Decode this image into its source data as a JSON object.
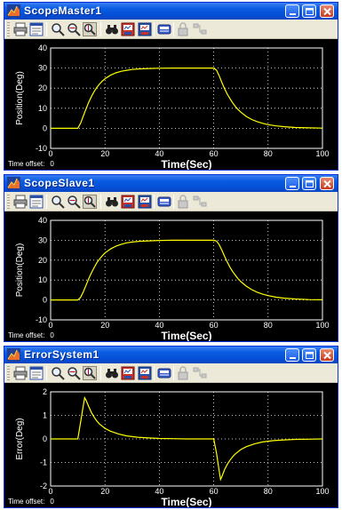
{
  "colors": {
    "titlebar": "#0a5ce0",
    "plot_background": "#000000",
    "trace": "#ffff00",
    "axes_text": "#ffffff",
    "grid": "#ffffff"
  },
  "toolbar_icons": [
    "print-icon",
    "parameters-icon",
    "zoom-icon",
    "zoom-x-icon",
    "zoom-y-icon",
    "autoscale-icon",
    "save-axes-icon",
    "restore-axes-icon",
    "floating-scope-icon",
    "lock-axes-icon",
    "signal-selection-icon"
  ],
  "windows": [
    {
      "title": "ScopeMaster1",
      "time_offset_label": "Time offset:",
      "time_offset_value": "0",
      "chart_data": {
        "type": "line",
        "xlabel": "Time(Sec)",
        "ylabel": "Position(Deg)",
        "xlim": [
          0,
          100
        ],
        "ylim": [
          -10,
          40
        ],
        "xticks": [
          0,
          20,
          40,
          60,
          80,
          100
        ],
        "yticks": [
          -10,
          0,
          10,
          20,
          30,
          40
        ],
        "grid": true,
        "series": [
          {
            "x": [
              0,
              10,
              11,
              12,
              13,
              14,
              15,
              16,
              17,
              18,
              19,
              20,
              22,
              24,
              26,
              28,
              30,
              33,
              36,
              40,
              45,
              50,
              55,
              60,
              61,
              62,
              63,
              64,
              65,
              66,
              67,
              68,
              69,
              70,
              72,
              74,
              76,
              78,
              80,
              83,
              86,
              90,
              95,
              100
            ],
            "y": [
              0,
              0,
              2.5,
              6.0,
              9.6,
              12.9,
              15.8,
              18.3,
              20.4,
              22.1,
              23.5,
              24.7,
              26.4,
              27.6,
              28.4,
              28.9,
              29.3,
              29.6,
              29.8,
              29.9,
              30,
              30,
              30,
              30,
              29.0,
              26.2,
              22.8,
              19.7,
              17.0,
              14.7,
              12.6,
              10.8,
              9.3,
              8.0,
              5.9,
              4.4,
              3.3,
              2.5,
              1.8,
              1.2,
              0.8,
              0.4,
              0.2,
              0.1
            ]
          }
        ]
      }
    },
    {
      "title": "ScopeSlave1",
      "time_offset_label": "Time offset:",
      "time_offset_value": "0",
      "chart_data": {
        "type": "line",
        "xlabel": "Time(Sec)",
        "ylabel": "Position(Deg)",
        "xlim": [
          0,
          100
        ],
        "ylim": [
          -10,
          40
        ],
        "xticks": [
          0,
          20,
          40,
          60,
          80,
          100
        ],
        "yticks": [
          -10,
          0,
          10,
          20,
          30,
          40
        ],
        "grid": true,
        "series": [
          {
            "x": [
              0,
              10,
              11,
              12,
              13,
              14,
              15,
              16,
              17,
              18,
              19,
              20,
              22,
              24,
              26,
              28,
              30,
              33,
              36,
              40,
              45,
              50,
              55,
              60,
              61,
              62,
              63,
              64,
              65,
              66,
              67,
              68,
              69,
              70,
              72,
              74,
              76,
              78,
              80,
              83,
              86,
              90,
              95,
              100
            ],
            "y": [
              0,
              0,
              1.3,
              4.0,
              7.3,
              10.6,
              13.6,
              16.3,
              18.7,
              20.6,
              22.2,
              23.6,
              25.6,
              27.0,
              28.0,
              28.7,
              29.1,
              29.5,
              29.7,
              29.9,
              30,
              30,
              30,
              30,
              29.6,
              27.8,
              25.0,
              21.9,
              19.0,
              16.4,
              14.2,
              12.3,
              10.6,
              9.2,
              6.9,
              5.2,
              3.9,
              2.9,
              2.2,
              1.4,
              0.9,
              0.5,
              0.2,
              0.1
            ]
          }
        ]
      }
    },
    {
      "title": "ErrorSystem1",
      "time_offset_label": "Time offset:",
      "time_offset_value": "0",
      "chart_data": {
        "type": "line",
        "xlabel": "Time(Sec)",
        "ylabel": "Error(Deg)",
        "xlim": [
          0,
          100
        ],
        "ylim": [
          -2,
          2
        ],
        "xticks": [
          0,
          20,
          40,
          60,
          80,
          100
        ],
        "yticks": [
          -2,
          -1,
          0,
          1,
          2
        ],
        "grid": true,
        "series": [
          {
            "x": [
              0,
              10,
              11,
              12,
              12.5,
              13,
              14,
              15,
              16,
              17,
              18,
              20,
              22,
              25,
              28,
              32,
              36,
              40,
              45,
              50,
              55,
              60,
              61,
              62,
              62.5,
              63,
              64,
              65,
              66,
              67,
              68,
              70,
              72,
              75,
              78,
              82,
              86,
              90,
              95,
              100
            ],
            "y": [
              0,
              0,
              0.7,
              1.4,
              1.75,
              1.65,
              1.38,
              1.12,
              0.92,
              0.76,
              0.63,
              0.45,
              0.33,
              0.21,
              0.13,
              0.07,
              0.04,
              0.02,
              0.01,
              0,
              0,
              0,
              -0.6,
              -1.35,
              -1.72,
              -1.6,
              -1.3,
              -1.08,
              -0.9,
              -0.75,
              -0.63,
              -0.45,
              -0.33,
              -0.21,
              -0.13,
              -0.07,
              -0.04,
              -0.02,
              -0.01,
              0
            ]
          }
        ]
      }
    }
  ]
}
